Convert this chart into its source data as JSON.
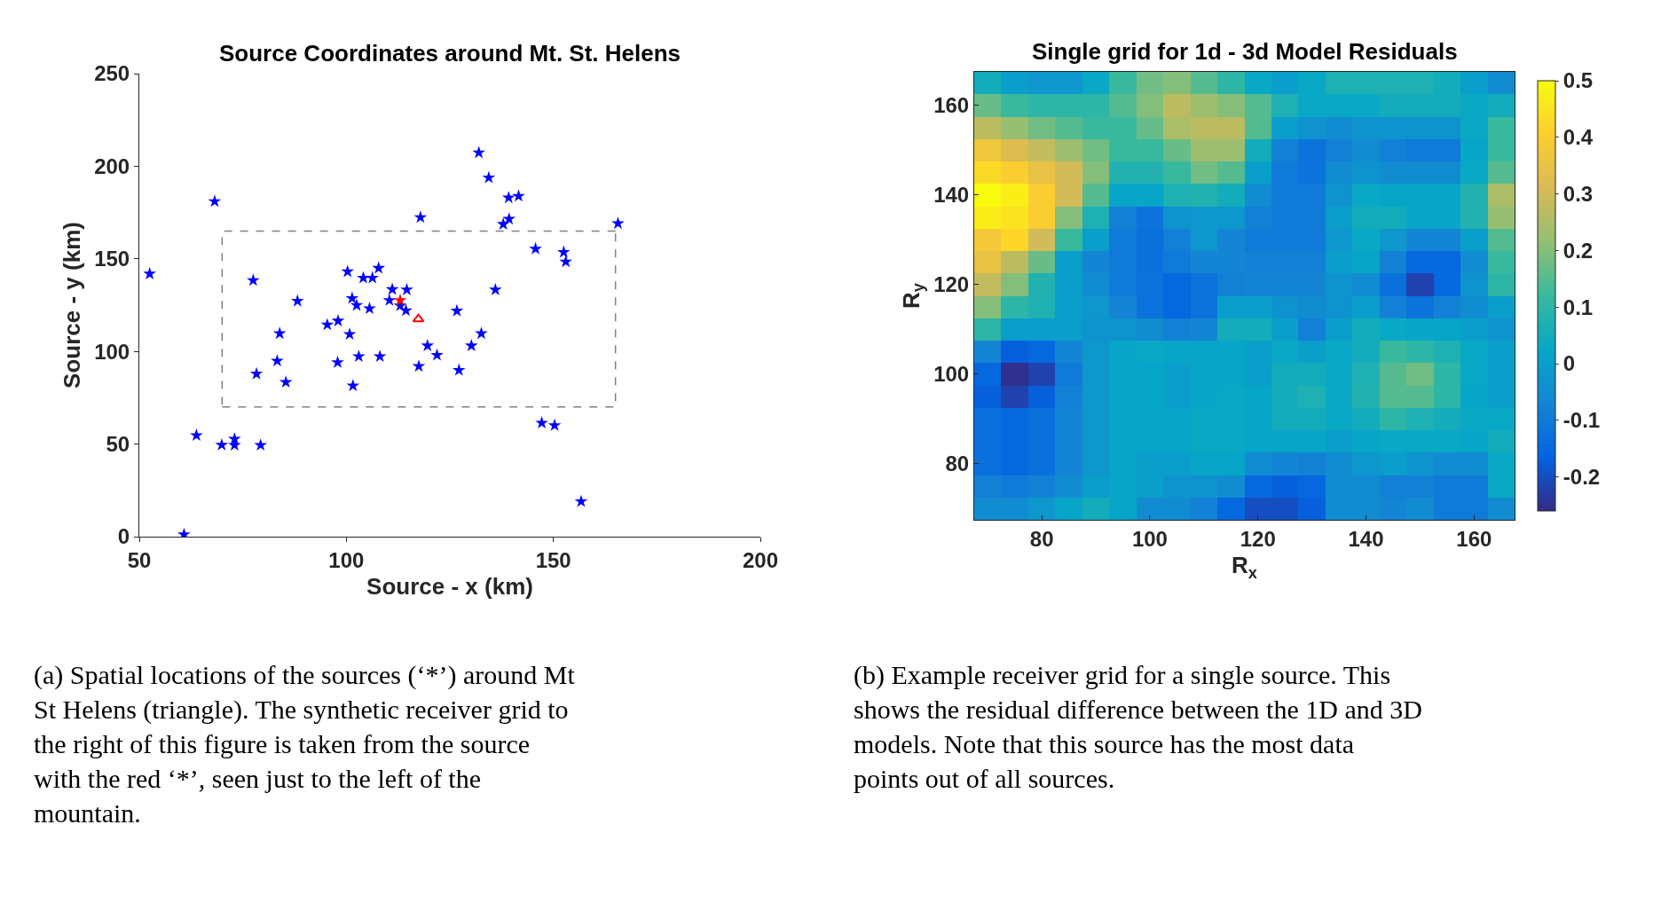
{
  "chart_data": [
    {
      "type": "scatter",
      "title": "Source Coordinates around Mt. St. Helens",
      "xlabel": "Source - x (km)",
      "ylabel": "Source - y (km)",
      "xlim": [
        50,
        200
      ],
      "ylim": [
        0,
        250
      ],
      "xticks": [
        50,
        100,
        150,
        200
      ],
      "yticks": [
        0,
        50,
        100,
        150,
        200,
        250
      ],
      "series": [
        {
          "color": "#0000ff",
          "marker": "star",
          "x": [
            132.0,
            134.4,
            139.2,
            141.6,
            68.2,
            117.9,
            137.9,
            139.3,
            165.6,
            52.5,
            145.7,
            152.5,
            153.0,
            77.5,
            100.3,
            104.1,
            106.3,
            107.8,
            111.1,
            114.6,
            136.0,
            88.2,
            101.4,
            102.5,
            105.6,
            110.4,
            113.0,
            114.4,
            126.7,
            95.4,
            98.0,
            100.8,
            83.9,
            132.6,
            130.2,
            119.6,
            121.9,
            103.0,
            108.1,
            97.9,
            83.3,
            117.5,
            127.2,
            78.3,
            85.4,
            101.6,
            147.2,
            150.3,
            63.8,
            69.9,
            73.0,
            73.0,
            79.3,
            156.7,
            60.8
          ],
          "values": [
            207.3,
            193.8,
            183.0,
            183.9,
            181.0,
            172.4,
            168.7,
            171.5,
            169.1,
            141.9,
            155.4,
            153.6,
            148.4,
            138.4,
            143.1,
            139.7,
            139.7,
            145.0,
            133.5,
            133.3,
            133.3,
            127.2,
            128.7,
            124.9,
            123.2,
            127.6,
            124.7,
            122.1,
            121.9,
            114.4,
            116.5,
            109.3,
            109.7,
            109.7,
            103.1,
            103.1,
            98.0,
            97.3,
            97.3,
            94.1,
            94.9,
            92.0,
            89.9,
            87.9,
            83.4,
            81.5,
            61.4,
            60.1,
            54.7,
            49.5,
            52.7,
            49.4,
            49.4,
            19.0,
            1.1
          ]
        },
        {
          "color": "#ff0000",
          "marker": "star",
          "x": [
            113.0
          ],
          "values": [
            127.6
          ]
        },
        {
          "color": "#ff0000",
          "marker": "triangle",
          "x": [
            117.4
          ],
          "values": [
            117.5
          ]
        },
        {
          "type": "line",
          "color": "#808080",
          "marker": "none",
          "line_style": "dashed",
          "x": [
            70,
            165,
            165
          ],
          "values": [
            70,
            70,
            165
          ]
        },
        {
          "type": "line",
          "color": "#808080",
          "marker": "none",
          "line_style": "dashed",
          "x": [
            165,
            70,
            70
          ],
          "values": [
            165,
            165,
            70
          ]
        }
      ],
      "annotations": [
        "(a) Spatial locations of the sources (‘*’) around Mt St Helens (triangle). The synthetic receiver grid to the right of this figure is taken from the source with the red ‘*’, seen just to the left of the mountain."
      ]
    },
    {
      "type": "heatmap",
      "title": "Single grid for 1d - 3d Model Residuals",
      "xlabel": "R$_{x}$",
      "ylabel": "R$_{y}$",
      "x": [
        70,
        75,
        80,
        85,
        90,
        95,
        100,
        105,
        110,
        115,
        120,
        125,
        130,
        135,
        140,
        145,
        150,
        155,
        160,
        165
      ],
      "y": [
        165,
        160,
        155,
        150,
        145,
        140,
        135,
        130,
        125,
        120,
        115,
        110,
        105,
        100,
        95,
        90,
        85,
        80,
        75,
        70
      ],
      "xlim": [
        67.5,
        167.5
      ],
      "ylim": [
        67.5,
        167.5
      ],
      "xticks": [
        80,
        100,
        120,
        140,
        160
      ],
      "yticks": [
        80,
        100,
        120,
        140,
        160
      ],
      "clim": [
        -0.26,
        0.5
      ],
      "cticks": [
        -0.2,
        -0.1,
        0,
        0.1,
        0.2,
        0.3,
        0.4,
        0.5
      ],
      "cells": [
        [
          0.05,
          0.0,
          -0.02,
          -0.02,
          0.03,
          0.12,
          0.18,
          0.2,
          0.15,
          0.1,
          0.03,
          0.0,
          0.03,
          0.07,
          0.07,
          0.07,
          0.07,
          0.05,
          0.0,
          -0.05
        ],
        [
          0.17,
          0.12,
          0.1,
          0.1,
          0.1,
          0.15,
          0.2,
          0.27,
          0.23,
          0.2,
          0.15,
          0.07,
          0.03,
          0.03,
          0.03,
          0.05,
          0.05,
          0.05,
          0.03,
          0.05
        ],
        [
          0.27,
          0.22,
          0.18,
          0.15,
          0.12,
          0.12,
          0.17,
          0.25,
          0.27,
          0.27,
          0.15,
          0.0,
          -0.03,
          -0.05,
          -0.03,
          -0.03,
          -0.03,
          -0.03,
          0.03,
          0.12
        ],
        [
          0.37,
          0.32,
          0.28,
          0.23,
          0.18,
          0.12,
          0.12,
          0.17,
          0.23,
          0.23,
          0.05,
          -0.08,
          -0.12,
          -0.08,
          -0.05,
          -0.08,
          -0.1,
          -0.1,
          0.02,
          0.12
        ],
        [
          0.43,
          0.4,
          0.35,
          0.3,
          0.2,
          0.08,
          0.08,
          0.12,
          0.18,
          0.15,
          0.0,
          -0.1,
          -0.12,
          -0.05,
          -0.03,
          -0.05,
          -0.05,
          -0.05,
          0.03,
          0.15
        ],
        [
          0.5,
          0.47,
          0.4,
          0.3,
          0.15,
          0.02,
          0.02,
          0.07,
          0.08,
          0.05,
          -0.05,
          -0.1,
          -0.1,
          -0.03,
          0.03,
          0.02,
          0.02,
          0.02,
          0.08,
          0.25
        ],
        [
          0.47,
          0.45,
          0.4,
          0.2,
          0.07,
          -0.08,
          -0.12,
          -0.03,
          -0.02,
          -0.02,
          -0.08,
          -0.1,
          -0.1,
          0.0,
          0.05,
          0.05,
          0.02,
          0.02,
          0.08,
          0.22
        ],
        [
          0.38,
          0.42,
          0.3,
          0.12,
          0.0,
          -0.1,
          -0.13,
          -0.08,
          -0.02,
          -0.07,
          -0.1,
          -0.1,
          -0.1,
          -0.02,
          0.03,
          -0.02,
          -0.07,
          -0.07,
          0.0,
          0.15
        ],
        [
          0.35,
          0.27,
          0.17,
          0.0,
          -0.07,
          -0.1,
          -0.13,
          -0.1,
          -0.07,
          -0.07,
          -0.08,
          -0.08,
          -0.08,
          0.0,
          0.02,
          -0.08,
          -0.15,
          -0.15,
          -0.05,
          0.12
        ],
        [
          0.28,
          0.2,
          0.08,
          0.0,
          -0.05,
          -0.1,
          -0.12,
          -0.15,
          -0.12,
          -0.08,
          -0.07,
          -0.07,
          -0.07,
          -0.03,
          -0.05,
          -0.13,
          -0.22,
          -0.15,
          -0.03,
          0.1
        ],
        [
          0.2,
          0.1,
          0.07,
          0.0,
          -0.02,
          -0.07,
          -0.12,
          -0.15,
          -0.12,
          0.0,
          0.0,
          -0.03,
          -0.05,
          -0.03,
          0.0,
          -0.08,
          -0.12,
          -0.08,
          -0.05,
          0.0
        ],
        [
          0.1,
          0.0,
          0.0,
          0.0,
          -0.03,
          -0.03,
          -0.05,
          -0.08,
          -0.07,
          0.05,
          0.05,
          0.0,
          -0.08,
          0.0,
          0.05,
          0.03,
          0.02,
          0.02,
          0.0,
          -0.03
        ],
        [
          -0.07,
          -0.17,
          -0.15,
          -0.07,
          -0.02,
          0.02,
          0.03,
          0.02,
          0.02,
          0.02,
          0.0,
          0.03,
          0.0,
          0.03,
          0.05,
          0.12,
          0.1,
          0.07,
          0.03,
          0.0
        ],
        [
          -0.15,
          -0.25,
          -0.22,
          -0.1,
          -0.02,
          0.02,
          0.02,
          0.0,
          0.02,
          0.02,
          0.0,
          0.05,
          0.05,
          0.03,
          0.07,
          0.15,
          0.18,
          0.1,
          0.03,
          0.0
        ],
        [
          -0.17,
          -0.22,
          -0.17,
          -0.08,
          -0.02,
          0.02,
          0.02,
          0.0,
          0.02,
          0.03,
          0.02,
          0.05,
          0.07,
          0.03,
          0.08,
          0.15,
          0.15,
          0.1,
          0.02,
          0.0
        ],
        [
          -0.13,
          -0.15,
          -0.13,
          -0.07,
          -0.02,
          0.02,
          0.02,
          0.02,
          0.03,
          0.03,
          0.02,
          0.05,
          0.05,
          0.03,
          0.05,
          0.1,
          0.07,
          0.05,
          0.03,
          0.03
        ],
        [
          -0.13,
          -0.15,
          -0.13,
          -0.07,
          -0.02,
          0.02,
          0.02,
          0.02,
          0.03,
          0.03,
          0.02,
          0.02,
          0.02,
          0.0,
          0.02,
          0.03,
          0.03,
          0.03,
          0.02,
          0.05
        ],
        [
          -0.13,
          -0.15,
          -0.13,
          -0.07,
          -0.02,
          0.02,
          0.0,
          0.0,
          0.02,
          0.02,
          -0.05,
          -0.07,
          -0.08,
          -0.05,
          -0.02,
          0.0,
          -0.03,
          -0.05,
          -0.05,
          0.03
        ],
        [
          -0.08,
          -0.1,
          -0.08,
          -0.05,
          0.0,
          0.02,
          0.0,
          -0.03,
          -0.03,
          -0.05,
          -0.15,
          -0.17,
          -0.15,
          -0.05,
          -0.05,
          -0.08,
          -0.08,
          -0.1,
          -0.1,
          0.03
        ],
        [
          -0.05,
          -0.05,
          -0.02,
          0.02,
          0.05,
          0.02,
          -0.05,
          -0.05,
          -0.08,
          -0.15,
          -0.2,
          -0.2,
          -0.17,
          -0.05,
          -0.05,
          -0.07,
          -0.05,
          -0.1,
          -0.1,
          -0.05
        ]
      ],
      "annotations": [
        "(b) Example receiver grid for a single source. This shows the residual difference between the 1D and 3D models. Note that this source has the most data points out of all sources."
      ]
    }
  ]
}
